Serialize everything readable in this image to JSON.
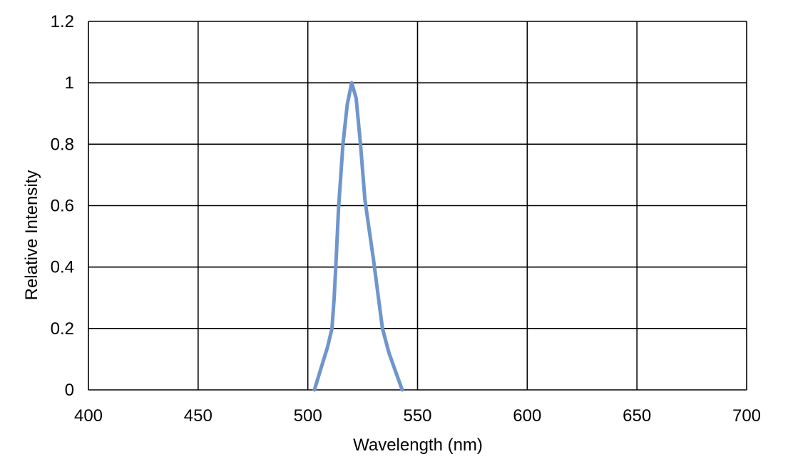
{
  "chart_data": {
    "type": "line",
    "title": "",
    "xlabel": "Wavelength (nm)",
    "ylabel": "Relative Intensity",
    "xlim": [
      400,
      700
    ],
    "ylim": [
      0,
      1.2
    ],
    "x_ticks": [
      "400",
      "450",
      "500",
      "550",
      "600",
      "650",
      "700"
    ],
    "y_ticks": [
      "0",
      "0.2",
      "0.4",
      "0.6",
      "0.8",
      "1",
      "1.2"
    ],
    "grid": true,
    "legend": "none",
    "series": [
      {
        "color": "#6f96cc",
        "x": [
          503,
          506,
          509,
          511,
          512,
          513,
          514,
          516,
          518,
          520,
          522,
          524,
          526,
          528,
          530,
          532,
          534,
          537,
          540,
          543
        ],
        "y": [
          0.0,
          0.07,
          0.14,
          0.2,
          0.3,
          0.44,
          0.59,
          0.8,
          0.93,
          1.0,
          0.95,
          0.8,
          0.62,
          0.52,
          0.42,
          0.31,
          0.2,
          0.12,
          0.06,
          0.0
        ]
      }
    ]
  },
  "colors": {
    "grid": "#000000",
    "series": "#6f96cc"
  }
}
